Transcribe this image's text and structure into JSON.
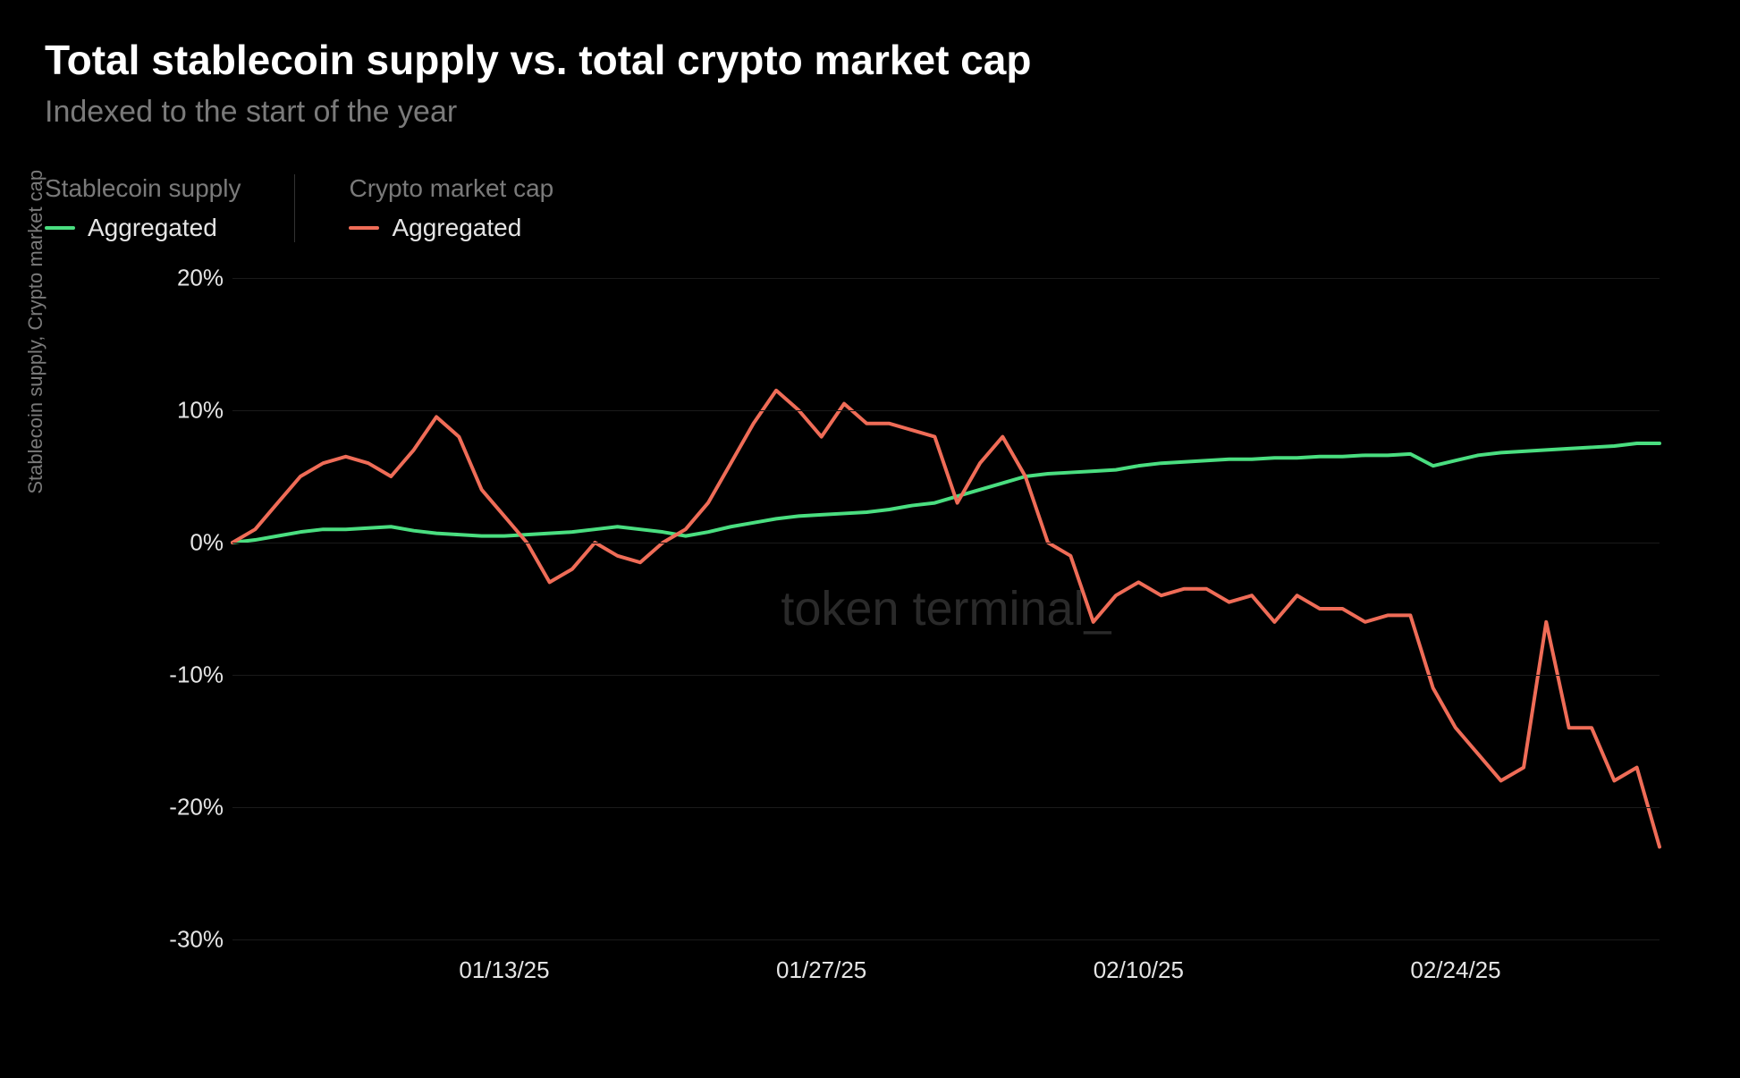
{
  "title": "Total stablecoin supply vs. total crypto market cap",
  "subtitle": "Indexed to the start of the year",
  "watermark": "token terminal_",
  "legend": {
    "group1": {
      "title": "Stablecoin supply",
      "item_label": "Aggregated",
      "color": "#4ade80"
    },
    "group2": {
      "title": "Crypto market cap",
      "item_label": "Aggregated",
      "color": "#ef6c57"
    }
  },
  "chart": {
    "type": "line",
    "y_axis_title": "Stablecoin supply, Crypto market cap",
    "ylim": [
      -30,
      20
    ],
    "y_ticks": [
      20,
      10,
      0,
      -10,
      -20,
      -30
    ],
    "y_tick_labels": [
      "20%",
      "10%",
      "0%",
      "-10%",
      "-20%",
      "-30%"
    ],
    "x_ticks": [
      12,
      26,
      40,
      54
    ],
    "x_tick_labels": [
      "01/13/25",
      "01/27/25",
      "02/10/25",
      "02/24/25"
    ],
    "x_range": [
      0,
      63
    ],
    "background_color": "#000000",
    "grid_color": "#1a1a1a",
    "text_color": "#e5e5e5",
    "muted_text_color": "#7a7a7a",
    "line_width": 4,
    "title_fontsize": 46,
    "subtitle_fontsize": 34,
    "tick_fontsize": 26,
    "series": {
      "stablecoin": {
        "color": "#4ade80",
        "data": [
          0,
          0.2,
          0.5,
          0.8,
          1,
          1,
          1.1,
          1.2,
          0.9,
          0.7,
          0.6,
          0.5,
          0.5,
          0.6,
          0.7,
          0.8,
          1,
          1.2,
          1,
          0.8,
          0.5,
          0.8,
          1.2,
          1.5,
          1.8,
          2,
          2.1,
          2.2,
          2.3,
          2.5,
          2.8,
          3,
          3.5,
          4,
          4.5,
          5,
          5.2,
          5.3,
          5.4,
          5.5,
          5.8,
          6,
          6.1,
          6.2,
          6.3,
          6.3,
          6.4,
          6.4,
          6.5,
          6.5,
          6.6,
          6.6,
          6.7,
          5.8,
          6.2,
          6.6,
          6.8,
          6.9,
          7,
          7.1,
          7.2,
          7.3,
          7.5,
          7.5
        ]
      },
      "marketcap": {
        "color": "#ef6c57",
        "data": [
          0,
          1,
          3,
          5,
          6,
          6.5,
          6,
          5,
          7,
          9.5,
          8,
          4,
          2,
          0,
          -3,
          -2,
          0,
          -1,
          -1.5,
          0,
          1,
          3,
          6,
          9,
          11.5,
          10,
          8,
          10.5,
          9,
          9,
          8.5,
          8,
          3,
          6,
          8,
          5,
          0,
          -1,
          -6,
          -4,
          -3,
          -4,
          -3.5,
          -3.5,
          -4.5,
          -4,
          -6,
          -4,
          -5,
          -5,
          -6,
          -5.5,
          -5.5,
          -11,
          -14,
          -16,
          -18,
          -17,
          -6,
          -14,
          -14,
          -18,
          -17,
          -23
        ]
      }
    }
  }
}
